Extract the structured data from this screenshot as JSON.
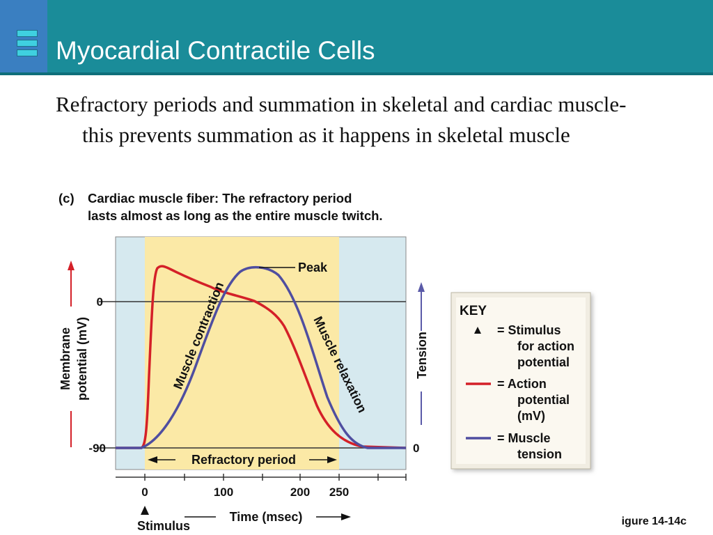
{
  "slide": {
    "title": "Myocardial Contractile Cells",
    "body": "Refractory periods and summation in skeletal and cardiac muscle- this prevents summation as it happens in skeletal muscle",
    "figure_ref": "igure 14-14c"
  },
  "figure": {
    "panel_label": "(c)",
    "caption_bold": "Cardiac muscle fiber:",
    "caption_rest_line1": "The refractory period",
    "caption_line2": "lasts almost as long as the entire muscle twitch.",
    "left_axis_label_1": "Membrane",
    "left_axis_label_2": "potential (mV)",
    "right_axis_label": "Tension",
    "tick_0mv": "0",
    "tick_minus90": "-90",
    "tick_tension_0": "0",
    "x_ticks": [
      "0",
      "100",
      "200",
      "250"
    ],
    "x_axis_label": "Time (msec)",
    "stimulus_label": "Stimulus",
    "peak_label": "Peak",
    "contraction_label": "Muscle contraction",
    "relaxation_label": "Muscle relaxation",
    "refractory_label": "Refractory period",
    "colors": {
      "action_potential": "#d42028",
      "muscle_tension": "#4f4ea0",
      "refractory_fill": "#fbe9a6",
      "plot_bg": "#d6e9ef",
      "axis_arrow_red": "#d42028",
      "axis_arrow_blue": "#5a5aa8"
    }
  },
  "key": {
    "title": "KEY",
    "items": [
      {
        "symbol": "triangle",
        "label_1": "=  Stimulus",
        "label_2": "for action",
        "label_3": "potential"
      },
      {
        "symbol": "red-line",
        "label_1": "=  Action",
        "label_2": "potential",
        "label_3": "(mV)"
      },
      {
        "symbol": "blue-line",
        "label_1": "=  Muscle",
        "label_2": "tension",
        "label_3": ""
      }
    ]
  }
}
